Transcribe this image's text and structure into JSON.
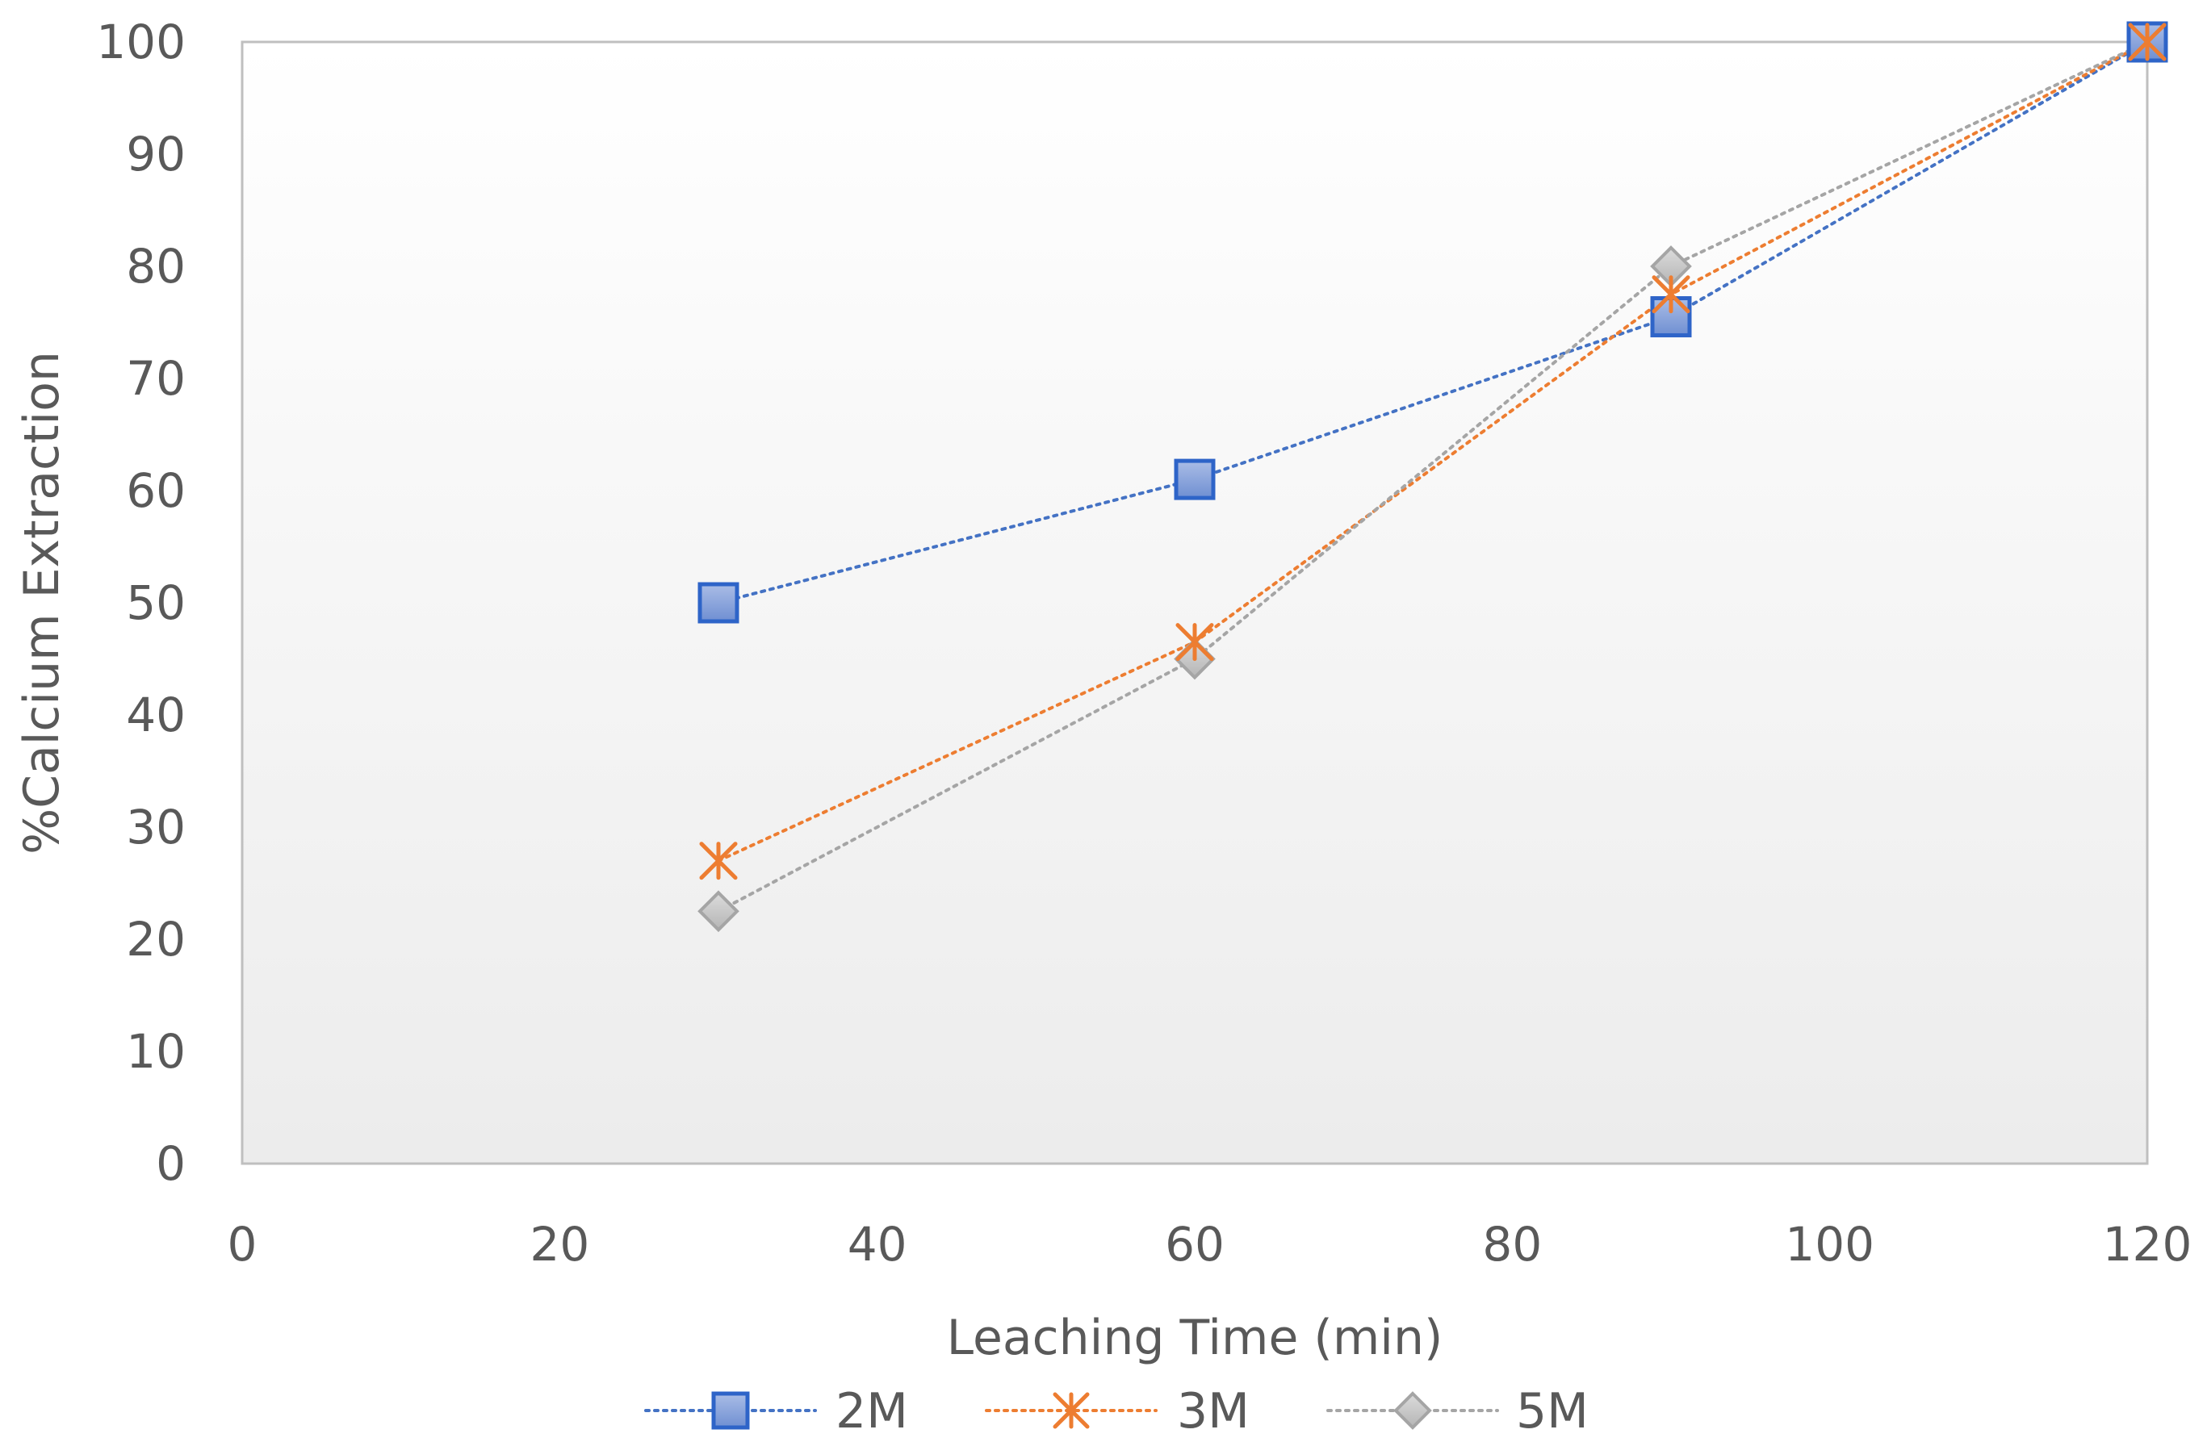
{
  "chart_data": {
    "type": "line",
    "title": "",
    "xlabel": "Leaching Time (min)",
    "ylabel": "%Calcium Extraction",
    "xlim": [
      0,
      120
    ],
    "ylim": [
      0,
      100
    ],
    "x_ticks": [
      "0",
      "20",
      "40",
      "60",
      "80",
      "100",
      "120"
    ],
    "y_ticks": [
      "0",
      "10",
      "20",
      "30",
      "40",
      "50",
      "60",
      "70",
      "80",
      "90",
      "100"
    ],
    "x_tick_values": [
      0,
      20,
      40,
      60,
      80,
      100,
      120
    ],
    "y_tick_values": [
      0,
      10,
      20,
      30,
      40,
      50,
      60,
      70,
      80,
      90,
      100
    ],
    "grid": false,
    "legend_position": "bottom",
    "line_style": "dotted",
    "x": [
      30,
      60,
      90,
      120
    ],
    "series": [
      {
        "name": "2M",
        "values": [
          50,
          61,
          75.5,
          100
        ],
        "color": "#4472C4",
        "marker": "square",
        "marker_fill": "#8FAADC",
        "marker_stroke": "#2E64C8"
      },
      {
        "name": "3M",
        "values": [
          27,
          46.5,
          77.5,
          100
        ],
        "color": "#ED7D31",
        "marker": "asterisk",
        "marker_fill": "#ED7D31",
        "marker_stroke": "#ED7D31"
      },
      {
        "name": "5M",
        "values": [
          22.5,
          45,
          80,
          100
        ],
        "color": "#A5A5A5",
        "marker": "diamond",
        "marker_fill": "#C9C9C9",
        "marker_stroke": "#A5A5A5"
      }
    ]
  }
}
